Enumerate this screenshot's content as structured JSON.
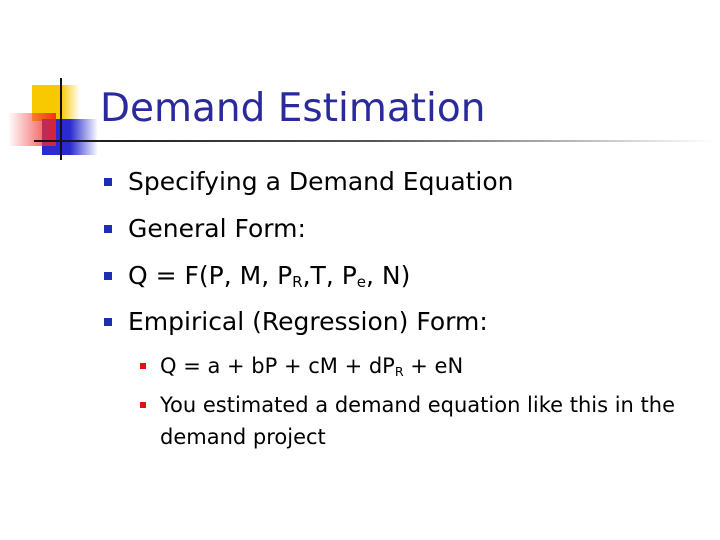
{
  "title": "Demand Estimation",
  "bullets": [
    {
      "text": "Specifying a Demand Equation"
    },
    {
      "text": "General Form:"
    },
    {
      "parts": [
        "Q = F(P, M, P",
        "R",
        ",T, P",
        "e",
        ", N)"
      ]
    },
    {
      "text": "Empirical (Regression) Form:"
    }
  ],
  "sub_bullets": [
    {
      "parts": [
        "Q = a + bP + cM + dP",
        "R",
        " + eN"
      ]
    },
    {
      "text": "You estimated a demand equation like this in the demand project"
    }
  ],
  "colors": {
    "title": "#2a2a9c",
    "bullet": "#1f2db0",
    "sub_bullet": "#e01010"
  }
}
